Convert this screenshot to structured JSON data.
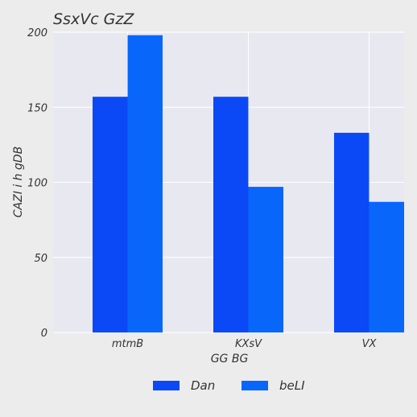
{
  "chart_data": {
    "type": "bar",
    "title": "SsxVc GzZ",
    "xlabel": "GG BG",
    "ylabel": "CAZI i h  gDB",
    "categories": [
      "mtmB",
      "KXsV",
      "VX"
    ],
    "series": [
      {
        "name": "Dan",
        "values": [
          157,
          157,
          133
        ],
        "color": "#0a49f5"
      },
      {
        "name": "beLI",
        "values": [
          198,
          97,
          87
        ],
        "color": "#0966fa"
      }
    ],
    "ylim": [
      0,
      200
    ],
    "yticks": [
      0,
      50,
      100,
      150,
      200
    ],
    "grid": true,
    "legend_position": "bottom-center",
    "plot_background": "#e8e8f0",
    "page_background": "#ececec",
    "grid_color": "#ffffff"
  }
}
